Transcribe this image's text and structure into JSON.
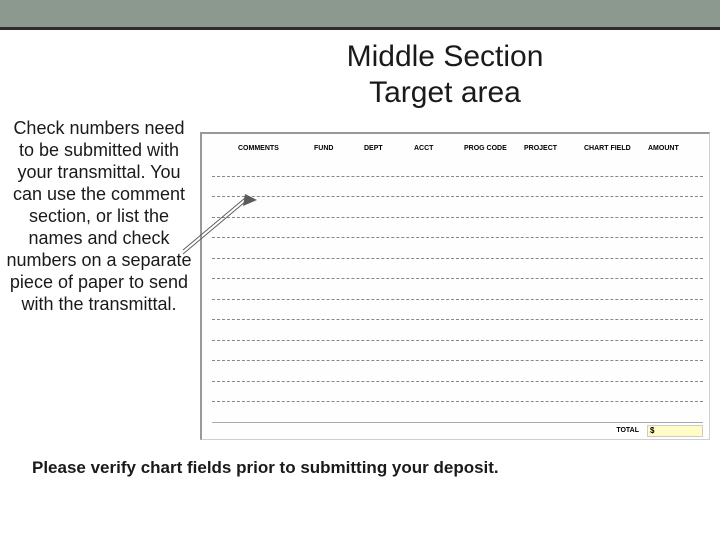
{
  "title_line1": "Middle Section",
  "title_line2": "Target area",
  "instruction_text": "Check numbers need to be submitted with your transmittal. You can use the comment section, or list the names and check numbers on a separate piece of paper to send with the transmittal.",
  "form": {
    "headers": {
      "comments": "COMMENTS",
      "fund": "FUND",
      "dept": "DEPT",
      "acct": "ACCT",
      "prog_code": "PROG CODE",
      "project": "PROJECT",
      "chart_field": "CHART FIELD",
      "amount": "AMOUNT"
    },
    "row_count": 13,
    "total_label": "TOTAL",
    "total_value": "$",
    "colors": {
      "top_bar": "#8b998e",
      "top_bar_border": "#2d2d2d",
      "row_dash": "#888888",
      "total_box_bg": "#fffcc8"
    }
  },
  "bottom_note": "Please verify chart fields prior to submitting your deposit.",
  "arrow": {
    "color": "#5b5b5b",
    "stroke_width": 0.8
  }
}
